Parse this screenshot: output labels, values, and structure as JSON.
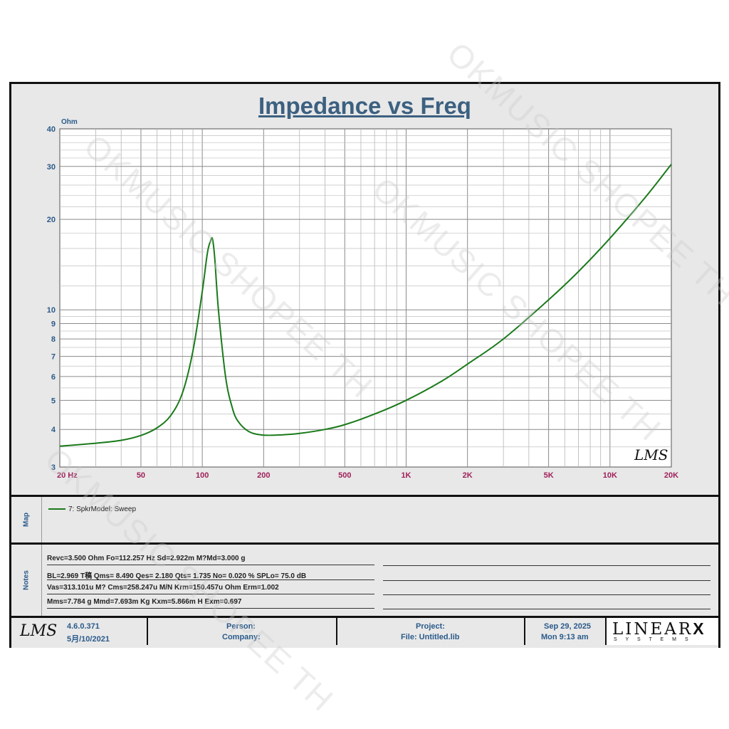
{
  "chart_data": {
    "type": "line",
    "title": "Impedance vs Freq",
    "ylabel": "Ohm",
    "x_scale": "log",
    "y_scale": "log",
    "xlim": [
      20,
      20000
    ],
    "ylim": [
      3,
      40
    ],
    "x_ticks": [
      {
        "value": 20,
        "label": "20  Hz"
      },
      {
        "value": 50,
        "label": "50"
      },
      {
        "value": 100,
        "label": "100"
      },
      {
        "value": 200,
        "label": "200"
      },
      {
        "value": 500,
        "label": "500"
      },
      {
        "value": 1000,
        "label": "1K"
      },
      {
        "value": 2000,
        "label": "2K"
      },
      {
        "value": 5000,
        "label": "5K"
      },
      {
        "value": 10000,
        "label": "10K"
      },
      {
        "value": 20000,
        "label": "20K"
      }
    ],
    "y_ticks": [
      {
        "value": 3,
        "label": "3"
      },
      {
        "value": 4,
        "label": "4"
      },
      {
        "value": 5,
        "label": "5"
      },
      {
        "value": 6,
        "label": "6"
      },
      {
        "value": 7,
        "label": "7"
      },
      {
        "value": 8,
        "label": "8"
      },
      {
        "value": 9,
        "label": "9"
      },
      {
        "value": 10,
        "label": "10"
      },
      {
        "value": 20,
        "label": "20"
      },
      {
        "value": 30,
        "label": "30"
      },
      {
        "value": 40,
        "label": "40"
      }
    ],
    "grid": true,
    "series": [
      {
        "name": "7: SpkrModel: Sweep",
        "color": "#1a7a1a",
        "x": [
          20,
          30,
          40,
          50,
          60,
          70,
          80,
          90,
          100,
          106,
          110,
          112.257,
          115,
          120,
          130,
          140,
          150,
          170,
          200,
          250,
          300,
          400,
          500,
          700,
          1000,
          1500,
          2000,
          3000,
          5000,
          7000,
          10000,
          15000,
          20000
        ],
        "y": [
          3.52,
          3.6,
          3.68,
          3.82,
          4.05,
          4.45,
          5.3,
          7.3,
          11.5,
          15.5,
          17.0,
          17.2,
          15.0,
          10.0,
          6.0,
          4.75,
          4.25,
          3.93,
          3.83,
          3.84,
          3.88,
          4.0,
          4.15,
          4.5,
          5.0,
          5.8,
          6.6,
          8.0,
          10.8,
          13.4,
          17.3,
          23.8,
          30.5
        ]
      }
    ]
  },
  "map": {
    "label": "Map",
    "entry": "7: SpkrModel: Sweep"
  },
  "notes": {
    "label": "Notes",
    "lines": [
      "Revc=3.500 Ohm  Fo=112.257 Hz  Sd=2.922m M?Md=3.000 g",
      "BL=2.969 T稿  Qms= 8.490  Qes= 2.180  Qts= 1.735  No= 0.020 %  SPLo= 75.0 dB",
      "Vas=313.101u M? Cms=258.247u M/N  Krm=150.457u Ohm  Erm=1.002",
      "Mms=7.784 g  Mmd=7.693m Kg  Kxm=5.866m H  Exm=0.697"
    ]
  },
  "footer": {
    "version": "4.6.0.371",
    "build_date": "5月/10/2021",
    "person": "Person:",
    "company": "Company:",
    "project": "Project:",
    "file": "File: Untitled.lib",
    "date": "Sep 29, 2025",
    "time": "Mon  9:13 am",
    "brand": "LINEAR",
    "brand_x": "X",
    "brand_sub": "S Y S T E M S"
  },
  "logo_text": "LMS",
  "watermark": "OKMUSIC SHOPEE TH",
  "colors": {
    "title": "#3c6080",
    "tick_y": "#2a5a8a",
    "tick_x": "#a0205a",
    "curve": "#1a7a1a",
    "grid": "#888888"
  }
}
